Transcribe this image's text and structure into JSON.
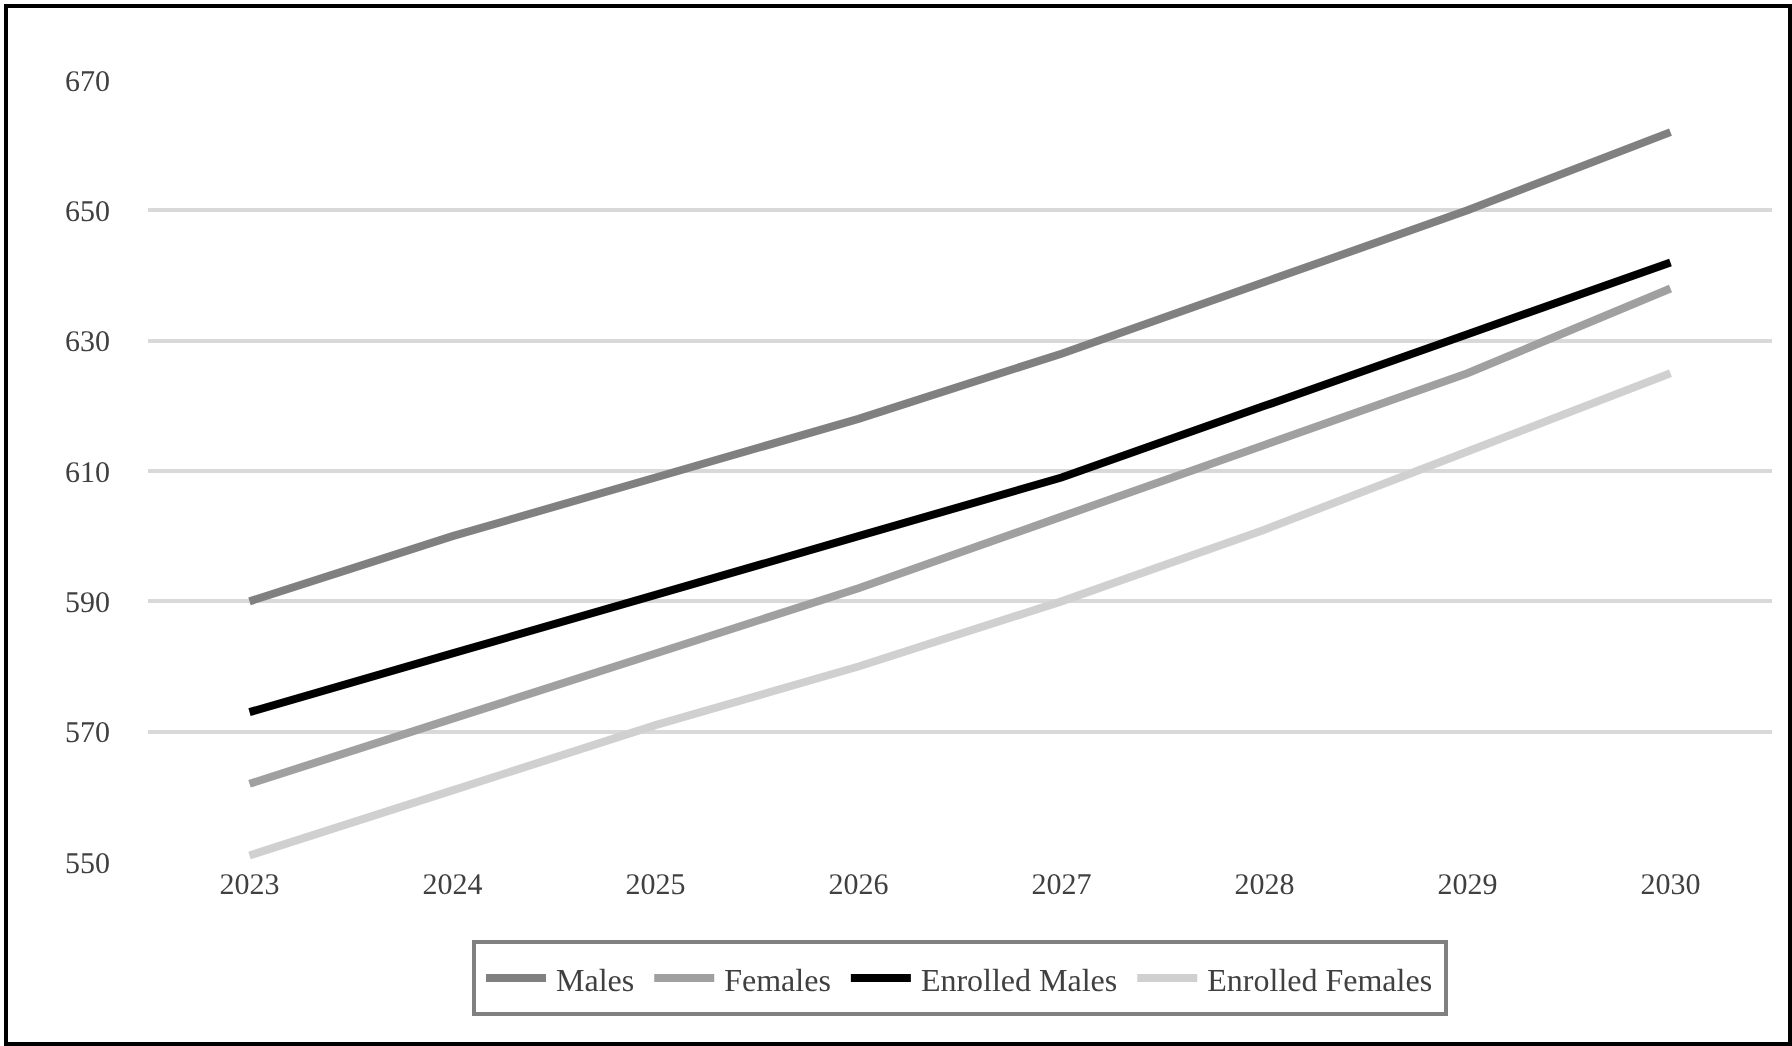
{
  "chart_data": {
    "type": "line",
    "categories": [
      "2023",
      "2024",
      "2025",
      "2026",
      "2027",
      "2028",
      "2029",
      "2030"
    ],
    "series": [
      {
        "name": "Males",
        "color": "#808080",
        "values": [
          590,
          600,
          609,
          618,
          628,
          639,
          650,
          662
        ]
      },
      {
        "name": "Females",
        "color": "#a0a0a0",
        "values": [
          562,
          572,
          582,
          592,
          603,
          614,
          625,
          638
        ]
      },
      {
        "name": "Enrolled Males",
        "color": "#000000",
        "values": [
          573,
          582,
          591,
          600,
          609,
          620,
          631,
          642
        ]
      },
      {
        "name": "Enrolled Females",
        "color": "#d0d0d0",
        "values": [
          551,
          561,
          571,
          580,
          590,
          601,
          613,
          625
        ]
      }
    ],
    "ylim": [
      550,
      670
    ],
    "yticks": [
      550,
      570,
      590,
      610,
      630,
      650,
      670
    ],
    "grid": "y",
    "legend": "bottom",
    "marker": "none",
    "line_style": "solid"
  }
}
